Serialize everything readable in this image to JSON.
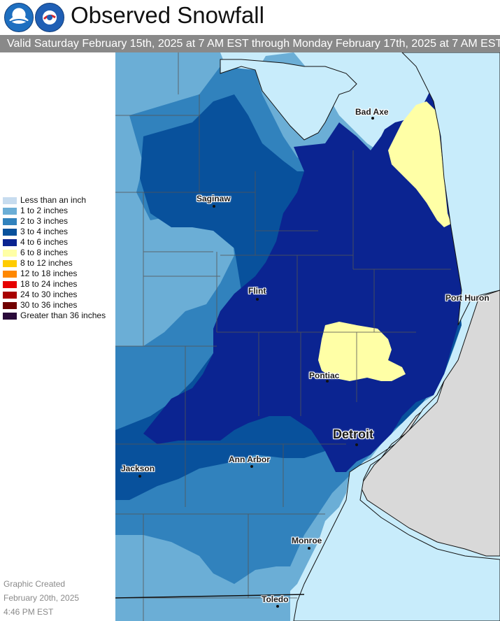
{
  "header": {
    "logos": [
      {
        "name": "noaa-logo",
        "text": "NOAA"
      },
      {
        "name": "nws-logo",
        "text": "NATIONAL WEATHER SERVICE"
      }
    ],
    "title": "Observed Snowfall",
    "valid_period": "Valid Saturday February 15th, 2025 at 7 AM EST through Monday February 17th, 2025 at 7 AM EST"
  },
  "legend": {
    "items": [
      {
        "label": "Less than an inch",
        "color": "#c7dcef"
      },
      {
        "label": "1 to 2 inches",
        "color": "#6baed6"
      },
      {
        "label": "2 to 3 inches",
        "color": "#3182bd"
      },
      {
        "label": "3 to 4 inches",
        "color": "#08519c"
      },
      {
        "label": "4 to 6 inches",
        "color": "#0b2491"
      },
      {
        "label": "6 to 8 inches",
        "color": "#ffffa6"
      },
      {
        "label": "8 to 12 inches",
        "color": "#ffcc00"
      },
      {
        "label": "12 to 18 inches",
        "color": "#ff8800"
      },
      {
        "label": "18 to 24 inches",
        "color": "#e60000"
      },
      {
        "label": "24 to 30 inches",
        "color": "#a80000"
      },
      {
        "label": "30 to 36 inches",
        "color": "#700000"
      },
      {
        "label": "Greater than 36 inches",
        "color": "#2a0a3a"
      }
    ]
  },
  "created": {
    "line1": "Graphic Created",
    "line2": "February 20th, 2025",
    "line3": "4:46 PM EST"
  },
  "map": {
    "colors": {
      "water": "#c8ecfb",
      "land_other": "#d9d9d9",
      "county_line": "#555555"
    },
    "cities": [
      {
        "name": "Bad Axe",
        "size": "normal"
      },
      {
        "name": "Saginaw",
        "size": "normal"
      },
      {
        "name": "Flint",
        "size": "normal"
      },
      {
        "name": "Port Huron",
        "size": "normal"
      },
      {
        "name": "Pontiac",
        "size": "normal"
      },
      {
        "name": "Detroit",
        "size": "big"
      },
      {
        "name": "Jackson",
        "size": "normal"
      },
      {
        "name": "Ann Arbor",
        "size": "normal"
      },
      {
        "name": "Monroe",
        "size": "normal"
      },
      {
        "name": "Toledo",
        "size": "normal"
      }
    ]
  }
}
